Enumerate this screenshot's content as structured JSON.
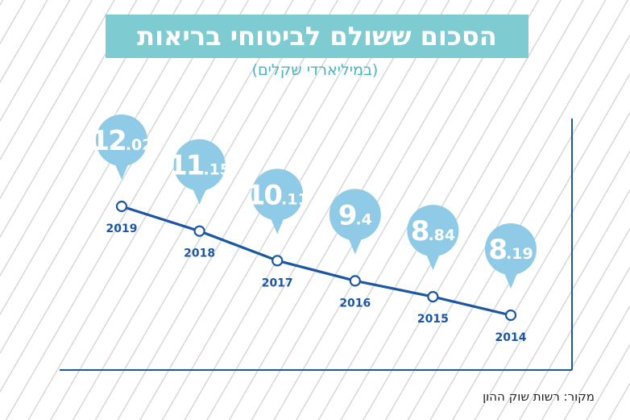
{
  "title": "הסכום ששולם לביטוחי בריאות",
  "subtitle": "(במיליארדי שקלים)",
  "source": "מקור: רשות שוק ההון",
  "colors": {
    "title_bg": "#7fcbd2",
    "subtitle": "#4bb3c2",
    "line": "#1b57a2",
    "bubble": "#8fcae6",
    "axis": "#1b57a2",
    "label": "#1b57a2"
  },
  "chart_data": {
    "type": "line",
    "title": "הסכום ששולם לביטוחי בריאות",
    "subtitle": "(במיליארדי שקלים)",
    "xlabel": "",
    "ylabel": "",
    "x": [
      "2019",
      "2018",
      "2017",
      "2016",
      "2015",
      "2014"
    ],
    "values": [
      12.02,
      11.15,
      10.11,
      9.4,
      8.84,
      8.19
    ],
    "data_labels": [
      {
        "int": "12",
        "dec": ".02"
      },
      {
        "int": "11",
        "dec": ".15"
      },
      {
        "int": "10",
        "dec": ".11"
      },
      {
        "int": "9",
        "dec": ".4"
      },
      {
        "int": "8",
        "dec": ".84"
      },
      {
        "int": "8",
        "dec": ".19"
      }
    ],
    "ylim": [
      7.6,
      12.5
    ],
    "grid": false,
    "x_direction": "rtl"
  }
}
